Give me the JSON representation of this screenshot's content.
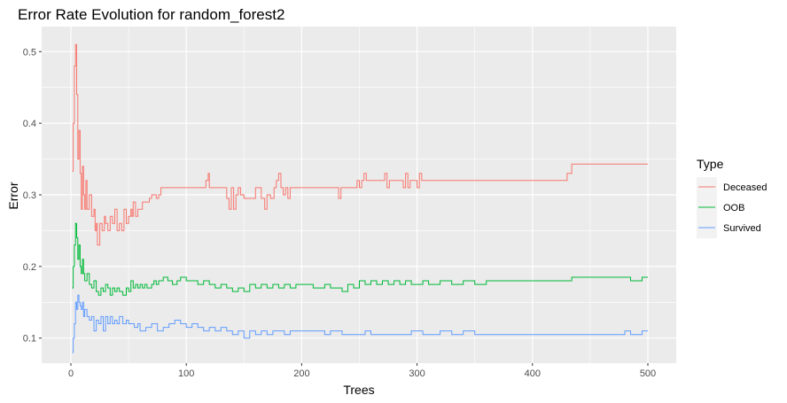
{
  "chart_data": {
    "type": "line",
    "title": "Error Rate Evolution for random_forest2",
    "xlabel": "Trees",
    "ylabel": "Error",
    "xlim": [
      0,
      500
    ],
    "ylim": [
      0.065,
      0.535
    ],
    "x_ticks": [
      0,
      100,
      200,
      300,
      400,
      500
    ],
    "y_ticks": [
      0.1,
      0.2,
      0.3,
      0.4,
      0.5
    ],
    "x_tick_labels": [
      "0",
      "100",
      "200",
      "300",
      "400",
      "500"
    ],
    "y_tick_labels": [
      "0.1",
      "0.2",
      "0.3",
      "0.4",
      "0.5"
    ],
    "grid": true,
    "legend_title": "Type",
    "legend_position": "right",
    "series": [
      {
        "name": "Deceased",
        "color": "#F8766D",
        "points": [
          [
            1,
            0.333
          ],
          [
            2,
            0.4
          ],
          [
            3,
            0.48
          ],
          [
            4,
            0.51
          ],
          [
            5,
            0.44
          ],
          [
            6,
            0.35
          ],
          [
            7,
            0.39
          ],
          [
            8,
            0.33
          ],
          [
            9,
            0.28
          ],
          [
            10,
            0.34
          ],
          [
            11,
            0.3
          ],
          [
            12,
            0.28
          ],
          [
            13,
            0.32
          ],
          [
            14,
            0.28
          ],
          [
            16,
            0.3
          ],
          [
            18,
            0.27
          ],
          [
            20,
            0.28
          ],
          [
            21,
            0.25
          ],
          [
            22,
            0.26
          ],
          [
            23,
            0.23
          ],
          [
            25,
            0.26
          ],
          [
            27,
            0.25
          ],
          [
            29,
            0.27
          ],
          [
            30,
            0.26
          ],
          [
            32,
            0.25
          ],
          [
            34,
            0.27
          ],
          [
            36,
            0.26
          ],
          [
            38,
            0.28
          ],
          [
            40,
            0.25
          ],
          [
            42,
            0.26
          ],
          [
            44,
            0.25
          ],
          [
            46,
            0.28
          ],
          [
            48,
            0.26
          ],
          [
            50,
            0.27
          ],
          [
            52,
            0.28
          ],
          [
            53,
            0.27
          ],
          [
            54,
            0.29
          ],
          [
            56,
            0.27
          ],
          [
            58,
            0.28
          ],
          [
            60,
            0.28
          ],
          [
            62,
            0.29
          ],
          [
            65,
            0.29
          ],
          [
            68,
            0.295
          ],
          [
            70,
            0.3
          ],
          [
            72,
            0.3
          ],
          [
            74,
            0.295
          ],
          [
            76,
            0.3
          ],
          [
            78,
            0.31
          ],
          [
            80,
            0.31
          ],
          [
            85,
            0.31
          ],
          [
            90,
            0.31
          ],
          [
            100,
            0.31
          ],
          [
            110,
            0.31
          ],
          [
            115,
            0.31
          ],
          [
            117,
            0.32
          ],
          [
            119,
            0.33
          ],
          [
            120,
            0.31
          ],
          [
            125,
            0.31
          ],
          [
            130,
            0.31
          ],
          [
            135,
            0.295
          ],
          [
            137,
            0.28
          ],
          [
            139,
            0.31
          ],
          [
            141,
            0.28
          ],
          [
            143,
            0.3
          ],
          [
            145,
            0.31
          ],
          [
            147,
            0.3
          ],
          [
            150,
            0.295
          ],
          [
            155,
            0.295
          ],
          [
            160,
            0.31
          ],
          [
            162,
            0.31
          ],
          [
            165,
            0.295
          ],
          [
            168,
            0.28
          ],
          [
            170,
            0.3
          ],
          [
            173,
            0.295
          ],
          [
            176,
            0.31
          ],
          [
            178,
            0.32
          ],
          [
            180,
            0.33
          ],
          [
            182,
            0.31
          ],
          [
            184,
            0.3
          ],
          [
            186,
            0.31
          ],
          [
            188,
            0.295
          ],
          [
            190,
            0.31
          ],
          [
            195,
            0.31
          ],
          [
            200,
            0.31
          ],
          [
            210,
            0.31
          ],
          [
            220,
            0.31
          ],
          [
            230,
            0.31
          ],
          [
            232,
            0.295
          ],
          [
            234,
            0.31
          ],
          [
            240,
            0.31
          ],
          [
            245,
            0.31
          ],
          [
            248,
            0.32
          ],
          [
            250,
            0.31
          ],
          [
            252,
            0.32
          ],
          [
            254,
            0.33
          ],
          [
            256,
            0.32
          ],
          [
            260,
            0.32
          ],
          [
            270,
            0.32
          ],
          [
            272,
            0.33
          ],
          [
            274,
            0.31
          ],
          [
            276,
            0.32
          ],
          [
            280,
            0.32
          ],
          [
            285,
            0.32
          ],
          [
            288,
            0.31
          ],
          [
            290,
            0.33
          ],
          [
            292,
            0.31
          ],
          [
            294,
            0.32
          ],
          [
            296,
            0.32
          ],
          [
            300,
            0.31
          ],
          [
            302,
            0.33
          ],
          [
            304,
            0.32
          ],
          [
            310,
            0.32
          ],
          [
            330,
            0.32
          ],
          [
            350,
            0.32
          ],
          [
            380,
            0.32
          ],
          [
            400,
            0.32
          ],
          [
            420,
            0.32
          ],
          [
            430,
            0.33
          ],
          [
            433,
            0.33
          ],
          [
            434,
            0.343
          ],
          [
            450,
            0.343
          ],
          [
            470,
            0.343
          ],
          [
            490,
            0.343
          ],
          [
            500,
            0.343
          ]
        ]
      },
      {
        "name": "OOB",
        "color": "#00BA38",
        "points": [
          [
            1,
            0.17
          ],
          [
            2,
            0.2
          ],
          [
            3,
            0.23
          ],
          [
            4,
            0.26
          ],
          [
            5,
            0.24
          ],
          [
            6,
            0.21
          ],
          [
            7,
            0.23
          ],
          [
            8,
            0.2
          ],
          [
            9,
            0.19
          ],
          [
            10,
            0.21
          ],
          [
            11,
            0.19
          ],
          [
            12,
            0.18
          ],
          [
            14,
            0.19
          ],
          [
            16,
            0.175
          ],
          [
            18,
            0.17
          ],
          [
            20,
            0.18
          ],
          [
            22,
            0.165
          ],
          [
            24,
            0.16
          ],
          [
            26,
            0.17
          ],
          [
            28,
            0.165
          ],
          [
            30,
            0.175
          ],
          [
            32,
            0.17
          ],
          [
            34,
            0.16
          ],
          [
            36,
            0.17
          ],
          [
            38,
            0.165
          ],
          [
            40,
            0.17
          ],
          [
            42,
            0.165
          ],
          [
            45,
            0.16
          ],
          [
            48,
            0.17
          ],
          [
            50,
            0.165
          ],
          [
            52,
            0.18
          ],
          [
            54,
            0.17
          ],
          [
            56,
            0.175
          ],
          [
            58,
            0.17
          ],
          [
            60,
            0.175
          ],
          [
            62,
            0.17
          ],
          [
            64,
            0.175
          ],
          [
            66,
            0.17
          ],
          [
            70,
            0.175
          ],
          [
            72,
            0.18
          ],
          [
            74,
            0.175
          ],
          [
            76,
            0.18
          ],
          [
            78,
            0.18
          ],
          [
            80,
            0.185
          ],
          [
            84,
            0.18
          ],
          [
            88,
            0.175
          ],
          [
            92,
            0.18
          ],
          [
            95,
            0.185
          ],
          [
            100,
            0.18
          ],
          [
            105,
            0.18
          ],
          [
            110,
            0.175
          ],
          [
            115,
            0.18
          ],
          [
            120,
            0.175
          ],
          [
            125,
            0.17
          ],
          [
            130,
            0.175
          ],
          [
            135,
            0.17
          ],
          [
            140,
            0.165
          ],
          [
            145,
            0.17
          ],
          [
            150,
            0.165
          ],
          [
            155,
            0.175
          ],
          [
            160,
            0.17
          ],
          [
            165,
            0.175
          ],
          [
            170,
            0.17
          ],
          [
            175,
            0.175
          ],
          [
            180,
            0.17
          ],
          [
            185,
            0.175
          ],
          [
            190,
            0.17
          ],
          [
            195,
            0.175
          ],
          [
            200,
            0.175
          ],
          [
            210,
            0.17
          ],
          [
            220,
            0.175
          ],
          [
            225,
            0.17
          ],
          [
            230,
            0.17
          ],
          [
            235,
            0.165
          ],
          [
            240,
            0.175
          ],
          [
            245,
            0.17
          ],
          [
            250,
            0.18
          ],
          [
            255,
            0.175
          ],
          [
            260,
            0.18
          ],
          [
            265,
            0.175
          ],
          [
            270,
            0.18
          ],
          [
            275,
            0.175
          ],
          [
            280,
            0.18
          ],
          [
            285,
            0.175
          ],
          [
            290,
            0.18
          ],
          [
            295,
            0.175
          ],
          [
            300,
            0.175
          ],
          [
            305,
            0.18
          ],
          [
            310,
            0.175
          ],
          [
            320,
            0.18
          ],
          [
            330,
            0.175
          ],
          [
            340,
            0.18
          ],
          [
            350,
            0.175
          ],
          [
            360,
            0.18
          ],
          [
            380,
            0.18
          ],
          [
            400,
            0.18
          ],
          [
            420,
            0.18
          ],
          [
            433,
            0.18
          ],
          [
            434,
            0.185
          ],
          [
            450,
            0.185
          ],
          [
            470,
            0.185
          ],
          [
            480,
            0.185
          ],
          [
            485,
            0.18
          ],
          [
            490,
            0.18
          ],
          [
            495,
            0.185
          ],
          [
            500,
            0.185
          ]
        ]
      },
      {
        "name": "Survived",
        "color": "#619CFF",
        "points": [
          [
            1,
            0.08
          ],
          [
            2,
            0.1
          ],
          [
            3,
            0.12
          ],
          [
            4,
            0.15
          ],
          [
            5,
            0.14
          ],
          [
            6,
            0.16
          ],
          [
            7,
            0.15
          ],
          [
            8,
            0.145
          ],
          [
            9,
            0.14
          ],
          [
            10,
            0.15
          ],
          [
            11,
            0.13
          ],
          [
            12,
            0.14
          ],
          [
            14,
            0.13
          ],
          [
            16,
            0.125
          ],
          [
            18,
            0.13
          ],
          [
            20,
            0.11
          ],
          [
            22,
            0.125
          ],
          [
            24,
            0.12
          ],
          [
            26,
            0.13
          ],
          [
            28,
            0.11
          ],
          [
            30,
            0.13
          ],
          [
            32,
            0.12
          ],
          [
            34,
            0.13
          ],
          [
            36,
            0.12
          ],
          [
            38,
            0.125
          ],
          [
            40,
            0.12
          ],
          [
            42,
            0.13
          ],
          [
            45,
            0.12
          ],
          [
            48,
            0.125
          ],
          [
            50,
            0.12
          ],
          [
            55,
            0.115
          ],
          [
            58,
            0.12
          ],
          [
            60,
            0.11
          ],
          [
            65,
            0.115
          ],
          [
            70,
            0.12
          ],
          [
            75,
            0.11
          ],
          [
            80,
            0.115
          ],
          [
            85,
            0.12
          ],
          [
            90,
            0.125
          ],
          [
            95,
            0.12
          ],
          [
            100,
            0.115
          ],
          [
            105,
            0.12
          ],
          [
            110,
            0.115
          ],
          [
            115,
            0.11
          ],
          [
            120,
            0.115
          ],
          [
            125,
            0.11
          ],
          [
            130,
            0.115
          ],
          [
            135,
            0.11
          ],
          [
            140,
            0.105
          ],
          [
            145,
            0.11
          ],
          [
            150,
            0.1
          ],
          [
            155,
            0.11
          ],
          [
            160,
            0.105
          ],
          [
            165,
            0.11
          ],
          [
            170,
            0.105
          ],
          [
            175,
            0.11
          ],
          [
            180,
            0.11
          ],
          [
            185,
            0.105
          ],
          [
            190,
            0.11
          ],
          [
            200,
            0.11
          ],
          [
            210,
            0.11
          ],
          [
            220,
            0.105
          ],
          [
            225,
            0.11
          ],
          [
            230,
            0.11
          ],
          [
            235,
            0.105
          ],
          [
            240,
            0.105
          ],
          [
            250,
            0.105
          ],
          [
            255,
            0.11
          ],
          [
            260,
            0.105
          ],
          [
            270,
            0.105
          ],
          [
            280,
            0.105
          ],
          [
            290,
            0.105
          ],
          [
            295,
            0.11
          ],
          [
            300,
            0.11
          ],
          [
            305,
            0.105
          ],
          [
            310,
            0.105
          ],
          [
            320,
            0.11
          ],
          [
            330,
            0.105
          ],
          [
            340,
            0.11
          ],
          [
            350,
            0.105
          ],
          [
            360,
            0.105
          ],
          [
            370,
            0.105
          ],
          [
            380,
            0.105
          ],
          [
            400,
            0.105
          ],
          [
            420,
            0.105
          ],
          [
            440,
            0.105
          ],
          [
            460,
            0.105
          ],
          [
            480,
            0.11
          ],
          [
            485,
            0.105
          ],
          [
            490,
            0.105
          ],
          [
            495,
            0.11
          ],
          [
            500,
            0.11
          ]
        ]
      }
    ]
  }
}
